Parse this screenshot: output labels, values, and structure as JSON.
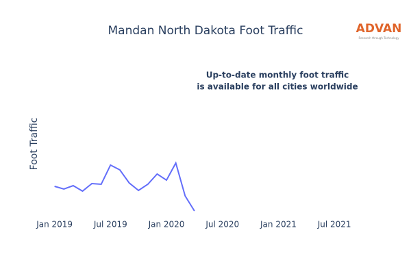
{
  "chart_data": {
    "type": "line",
    "title": "Mandan North Dakota Foot Traffic",
    "y_axis_label": "Foot Traffic",
    "annotation": [
      "Up-to-date monthly foot traffic",
      "is available for all cities worldwide"
    ],
    "logo": {
      "text": "ADVAN",
      "tagline": "Research through Technology"
    },
    "x": [
      "2019-01",
      "2019-02",
      "2019-03",
      "2019-04",
      "2019-05",
      "2019-06",
      "2019-07",
      "2019-08",
      "2019-09",
      "2019-10",
      "2019-11",
      "2019-12",
      "2020-01",
      "2020-02",
      "2020-03",
      "2020-04"
    ],
    "series": [
      {
        "name": "Foot Traffic",
        "color": "#636efa",
        "values": [
          43,
          39,
          44,
          36,
          47,
          46,
          74,
          67,
          48,
          37,
          46,
          61,
          52,
          77,
          29,
          7
        ]
      }
    ],
    "xlim": [
      "2018-12",
      "2021-10"
    ],
    "xticks": [
      {
        "value": "2019-01",
        "label": "Jan 2019"
      },
      {
        "value": "2019-07",
        "label": "Jul 2019"
      },
      {
        "value": "2020-01",
        "label": "Jan 2020"
      },
      {
        "value": "2020-07",
        "label": "Jul 2020"
      },
      {
        "value": "2021-01",
        "label": "Jan 2021"
      },
      {
        "value": "2021-07",
        "label": "Jul 2021"
      }
    ],
    "ylim": [
      0,
      100
    ]
  }
}
